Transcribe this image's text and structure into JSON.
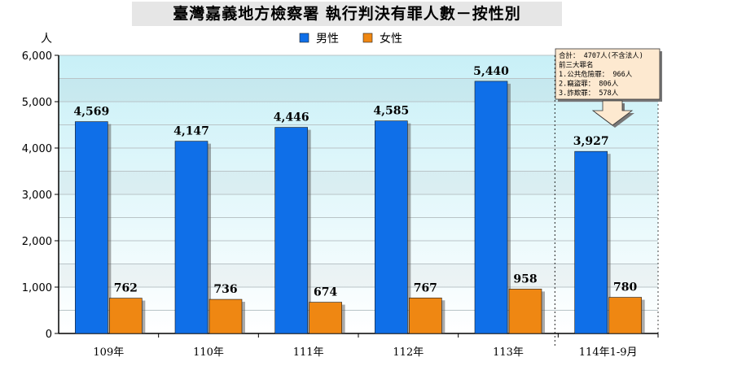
{
  "title": "臺灣嘉義地方檢察署 執行判決有罪人數－按性別",
  "chart_data": {
    "type": "bar",
    "unit_label": "人",
    "categories": [
      "109年",
      "110年",
      "111年",
      "112年",
      "113年",
      "114年1-9月"
    ],
    "series": [
      {
        "name": "男性",
        "color": "#0f6fe8",
        "values": [
          4569,
          4147,
          4446,
          4585,
          5440,
          3927
        ],
        "labels": [
          "4,569",
          "4,147",
          "4,446",
          "4,585",
          "5,440",
          "3,927"
        ]
      },
      {
        "name": "女性",
        "color": "#ef8712",
        "values": [
          762,
          736,
          674,
          767,
          958,
          780
        ],
        "labels": [
          "762",
          "736",
          "674",
          "767",
          "958",
          "780"
        ]
      }
    ],
    "ylim": [
      0,
      6000
    ],
    "yticks": [
      0,
      1000,
      2000,
      3000,
      4000,
      5000,
      6000
    ],
    "ytick_labels": [
      "0",
      "1,000",
      "2,000",
      "3,000",
      "4,000",
      "5,000",
      "6,000"
    ],
    "legend_position": "top-center",
    "grid": true,
    "annotation": {
      "lines": [
        "合計： 4707人(不含法人)",
        "前三大罪名",
        "1.公共危險罪： 966人",
        "2.竊盜罪： 806人",
        "3.詐欺罪： 578人"
      ]
    }
  }
}
